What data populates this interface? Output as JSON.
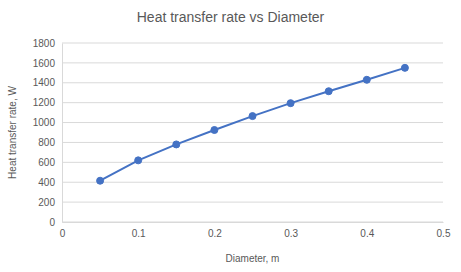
{
  "chart_data": {
    "type": "line",
    "title": "Heat transfer rate vs Diameter",
    "x_label": "Diameter, m",
    "y_label": "Heat transfer rate, W",
    "x": [
      0.05,
      0.1,
      0.15,
      0.2,
      0.25,
      0.3,
      0.35,
      0.4,
      0.45
    ],
    "values": [
      415,
      620,
      780,
      925,
      1065,
      1195,
      1315,
      1430,
      1550
    ],
    "color": "#4472c4",
    "marker": "circle",
    "xlim": [
      0,
      0.5
    ],
    "xticks": [
      0,
      0.1,
      0.2,
      0.3,
      0.4,
      0.5
    ],
    "ylim": [
      0,
      1800
    ],
    "yticks": [
      0,
      200,
      400,
      600,
      800,
      1000,
      1200,
      1400,
      1600,
      1800
    ],
    "grid": true
  }
}
